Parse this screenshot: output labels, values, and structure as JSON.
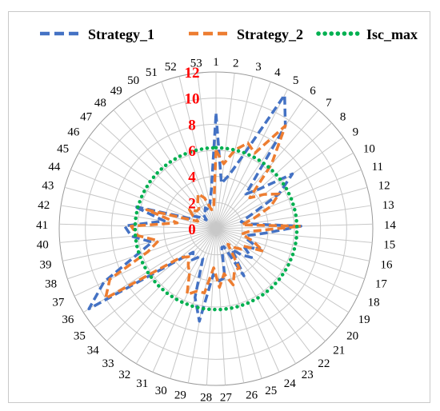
{
  "chart_data": {
    "type": "radar",
    "categories": [
      "1",
      "2",
      "3",
      "4",
      "5",
      "6",
      "7",
      "8",
      "9",
      "10",
      "11",
      "12",
      "13",
      "14",
      "15",
      "16",
      "17",
      "18",
      "19",
      "20",
      "21",
      "22",
      "23",
      "24",
      "25",
      "26",
      "27",
      "28",
      "29",
      "30",
      "31",
      "32",
      "33",
      "34",
      "35",
      "36",
      "37",
      "38",
      "39",
      "40",
      "41",
      "42",
      "43",
      "44",
      "45",
      "46",
      "47",
      "48",
      "49",
      "50",
      "51",
      "52",
      "53"
    ],
    "r_ticks": [
      "0",
      "2",
      "4",
      "6",
      "8",
      "10",
      "12"
    ],
    "rlim": [
      0,
      12
    ],
    "grid": true,
    "legend": "top",
    "series": [
      {
        "name": "Strategy_1",
        "color": "#4472c4",
        "style": "long-dash",
        "values": [
          8.8,
          3.5,
          4.2,
          6.0,
          11.5,
          9.5,
          3.5,
          4.5,
          7.2,
          5.5,
          3.0,
          2.0,
          2.5,
          6.5,
          3.8,
          2.5,
          2.5,
          3.8,
          2.5,
          3.5,
          2.8,
          2.0,
          4.2,
          1.5,
          1.5,
          3.8,
          4.0,
          3.5,
          7.2,
          5.5,
          2.5,
          2.5,
          3.0,
          2.5,
          4.0,
          11.5,
          9.5,
          6.5,
          5.0,
          6.5,
          7.0,
          4.0,
          6.5,
          2.0,
          2.0,
          1.5,
          1.0,
          1.5,
          1.5,
          1.8,
          1.5,
          2.0,
          3.0
        ]
      },
      {
        "name": "Strategy_2",
        "color": "#ed7d31",
        "style": "long-dash",
        "values": [
          6.0,
          5.0,
          6.2,
          7.0,
          6.5,
          9.5,
          6.5,
          3.5,
          4.5,
          5.5,
          4.5,
          3.0,
          2.0,
          6.5,
          2.5,
          2.0,
          3.0,
          4.0,
          2.5,
          2.5,
          2.0,
          1.5,
          3.5,
          3.5,
          4.5,
          3.5,
          4.5,
          3.0,
          5.0,
          5.0,
          5.5,
          4.0,
          3.5,
          3.0,
          3.5,
          10.0,
          9.0,
          5.5,
          4.5,
          6.0,
          6.5,
          3.0,
          5.5,
          1.5,
          2.0,
          2.5,
          2.0,
          2.0,
          2.5,
          3.0,
          2.5,
          1.5,
          1.5
        ]
      },
      {
        "name": "Isc_max",
        "color": "#00b050",
        "style": "round-dot",
        "values": [
          6.2,
          6.2,
          6.2,
          6.2,
          6.2,
          6.2,
          6.2,
          6.2,
          6.2,
          6.2,
          6.2,
          6.2,
          6.2,
          6.2,
          6.2,
          6.2,
          6.2,
          6.2,
          6.2,
          6.2,
          6.2,
          6.2,
          6.2,
          6.2,
          6.2,
          6.2,
          6.2,
          6.2,
          6.2,
          6.2,
          6.2,
          6.2,
          6.2,
          6.2,
          6.2,
          6.2,
          6.2,
          6.2,
          6.2,
          6.2,
          6.2,
          6.2,
          6.2,
          6.2,
          6.2,
          6.2,
          6.2,
          6.2,
          6.2,
          6.2,
          6.2,
          6.2,
          6.2
        ]
      }
    ]
  }
}
